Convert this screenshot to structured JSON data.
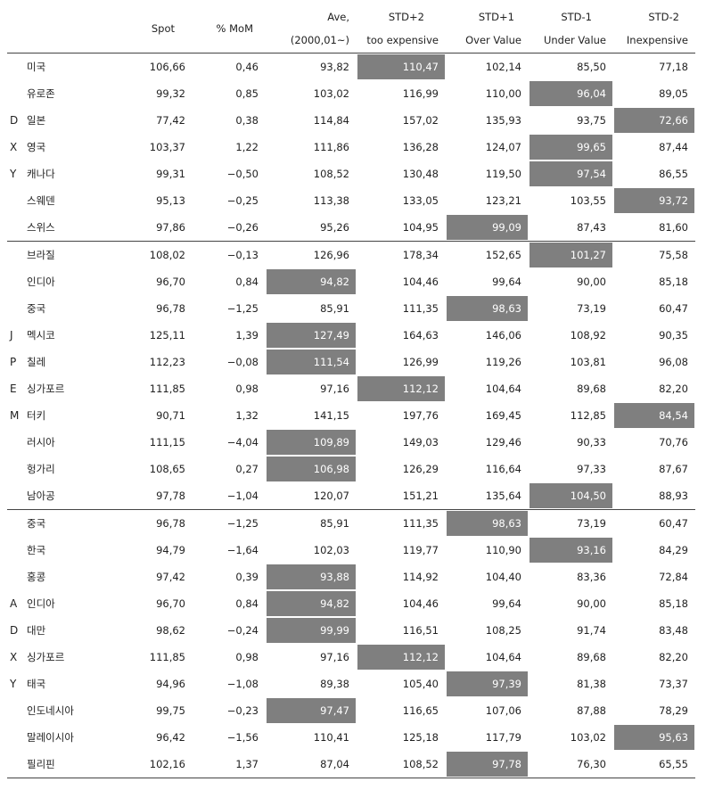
{
  "header": {
    "spot": "Spot",
    "mom": "% MoM",
    "ave_l1": "Ave,",
    "ave_l2": "(2000,01~)",
    "std_p2_l1": "STD+2",
    "std_p2_l2": "too expensive",
    "std_p1_l1": "STD+1",
    "std_p1_l2": "Over Value",
    "std_m1_l1": "STD-1",
    "std_m1_l2": "Under Value",
    "std_m2_l1": "STD-2",
    "std_m2_l2": "Inexpensive"
  },
  "highlight_color": "#7f7f7f",
  "sections": [
    {
      "group_letters": [
        "",
        "",
        "D",
        "X",
        "Y",
        "",
        ""
      ],
      "rows": [
        {
          "name": "미국",
          "spot": "106,66",
          "mom": "0,46",
          "ave": "93,82",
          "p2": "110,47",
          "p1": "102,14",
          "m1": "85,50",
          "m2": "77,18",
          "hl": "p2"
        },
        {
          "name": "유로존",
          "spot": "99,32",
          "mom": "0,85",
          "ave": "103,02",
          "p2": "116,99",
          "p1": "110,00",
          "m1": "96,04",
          "m2": "89,05",
          "hl": "m1"
        },
        {
          "name": "일본",
          "spot": "77,42",
          "mom": "0,38",
          "ave": "114,84",
          "p2": "157,02",
          "p1": "135,93",
          "m1": "93,75",
          "m2": "72,66",
          "hl": "m2"
        },
        {
          "name": "영국",
          "spot": "103,37",
          "mom": "1,22",
          "ave": "111,86",
          "p2": "136,28",
          "p1": "124,07",
          "m1": "99,65",
          "m2": "87,44",
          "hl": "m1"
        },
        {
          "name": "캐나다",
          "spot": "99,31",
          "mom": "-0,50",
          "ave": "108,52",
          "p2": "130,48",
          "p1": "119,50",
          "m1": "97,54",
          "m2": "86,55",
          "hl": "m1"
        },
        {
          "name": "스웨덴",
          "spot": "95,13",
          "mom": "-0,25",
          "ave": "113,38",
          "p2": "133,05",
          "p1": "123,21",
          "m1": "103,55",
          "m2": "93,72",
          "hl": "m2"
        },
        {
          "name": "스위스",
          "spot": "97,86",
          "mom": "-0,26",
          "ave": "95,26",
          "p2": "104,95",
          "p1": "99,09",
          "m1": "87,43",
          "m2": "81,60",
          "hl": "p1"
        }
      ]
    },
    {
      "group_letters": [
        "",
        "",
        "",
        "J",
        "P",
        "E",
        "M",
        "",
        "",
        ""
      ],
      "rows": [
        {
          "name": "브라질",
          "spot": "108,02",
          "mom": "-0,13",
          "ave": "126,96",
          "p2": "178,34",
          "p1": "152,65",
          "m1": "101,27",
          "m2": "75,58",
          "hl": "m1"
        },
        {
          "name": "인디아",
          "spot": "96,70",
          "mom": "0,84",
          "ave": "94,82",
          "p2": "104,46",
          "p1": "99,64",
          "m1": "90,00",
          "m2": "85,18",
          "hl": "ave"
        },
        {
          "name": "중국",
          "spot": "96,78",
          "mom": "-1,25",
          "ave": "85,91",
          "p2": "111,35",
          "p1": "98,63",
          "m1": "73,19",
          "m2": "60,47",
          "hl": "p1"
        },
        {
          "name": "멕시코",
          "spot": "125,11",
          "mom": "1,39",
          "ave": "127,49",
          "p2": "164,63",
          "p1": "146,06",
          "m1": "108,92",
          "m2": "90,35",
          "hl": "ave"
        },
        {
          "name": "칠레",
          "spot": "112,23",
          "mom": "-0,08",
          "ave": "111,54",
          "p2": "126,99",
          "p1": "119,26",
          "m1": "103,81",
          "m2": "96,08",
          "hl": "ave"
        },
        {
          "name": "싱가포르",
          "spot": "111,85",
          "mom": "0,98",
          "ave": "97,16",
          "p2": "112,12",
          "p1": "104,64",
          "m1": "89,68",
          "m2": "82,20",
          "hl": "p2"
        },
        {
          "name": "터키",
          "spot": "90,71",
          "mom": "1,32",
          "ave": "141,15",
          "p2": "197,76",
          "p1": "169,45",
          "m1": "112,85",
          "m2": "84,54",
          "hl": "m2"
        },
        {
          "name": "러시아",
          "spot": "111,15",
          "mom": "-4,04",
          "ave": "109,89",
          "p2": "149,03",
          "p1": "129,46",
          "m1": "90,33",
          "m2": "70,76",
          "hl": "ave"
        },
        {
          "name": "헝가리",
          "spot": "108,65",
          "mom": "0,27",
          "ave": "106,98",
          "p2": "126,29",
          "p1": "116,64",
          "m1": "97,33",
          "m2": "87,67",
          "hl": "ave"
        },
        {
          "name": "남아공",
          "spot": "97,78",
          "mom": "-1,04",
          "ave": "120,07",
          "p2": "151,21",
          "p1": "135,64",
          "m1": "104,50",
          "m2": "88,93",
          "hl": "m1"
        }
      ]
    },
    {
      "group_letters": [
        "",
        "",
        "",
        "A",
        "D",
        "X",
        "Y",
        "",
        "",
        ""
      ],
      "rows": [
        {
          "name": "중국",
          "spot": "96,78",
          "mom": "-1,25",
          "ave": "85,91",
          "p2": "111,35",
          "p1": "98,63",
          "m1": "73,19",
          "m2": "60,47",
          "hl": "p1"
        },
        {
          "name": "한국",
          "spot": "94,79",
          "mom": "-1,64",
          "ave": "102,03",
          "p2": "119,77",
          "p1": "110,90",
          "m1": "93,16",
          "m2": "84,29",
          "hl": "m1"
        },
        {
          "name": "홍콩",
          "spot": "97,42",
          "mom": "0,39",
          "ave": "93,88",
          "p2": "114,92",
          "p1": "104,40",
          "m1": "83,36",
          "m2": "72,84",
          "hl": "ave"
        },
        {
          "name": "인디아",
          "spot": "96,70",
          "mom": "0,84",
          "ave": "94,82",
          "p2": "104,46",
          "p1": "99,64",
          "m1": "90,00",
          "m2": "85,18",
          "hl": "ave"
        },
        {
          "name": "대만",
          "spot": "98,62",
          "mom": "-0,24",
          "ave": "99,99",
          "p2": "116,51",
          "p1": "108,25",
          "m1": "91,74",
          "m2": "83,48",
          "hl": "ave"
        },
        {
          "name": "싱가포르",
          "spot": "111,85",
          "mom": "0,98",
          "ave": "97,16",
          "p2": "112,12",
          "p1": "104,64",
          "m1": "89,68",
          "m2": "82,20",
          "hl": "p2"
        },
        {
          "name": "태국",
          "spot": "94,96",
          "mom": "-1,08",
          "ave": "89,38",
          "p2": "105,40",
          "p1": "97,39",
          "m1": "81,38",
          "m2": "73,37",
          "hl": "p1"
        },
        {
          "name": "인도네시아",
          "spot": "99,75",
          "mom": "-0,23",
          "ave": "97,47",
          "p2": "116,65",
          "p1": "107,06",
          "m1": "87,88",
          "m2": "78,29",
          "hl": "ave"
        },
        {
          "name": "말레이시아",
          "spot": "96,42",
          "mom": "-1,56",
          "ave": "110,41",
          "p2": "125,18",
          "p1": "117,79",
          "m1": "103,02",
          "m2": "95,63",
          "hl": "m2"
        },
        {
          "name": "필리핀",
          "spot": "102,16",
          "mom": "1,37",
          "ave": "87,04",
          "p2": "108,52",
          "p1": "97,78",
          "m1": "76,30",
          "m2": "65,55",
          "hl": "p1"
        }
      ]
    }
  ]
}
